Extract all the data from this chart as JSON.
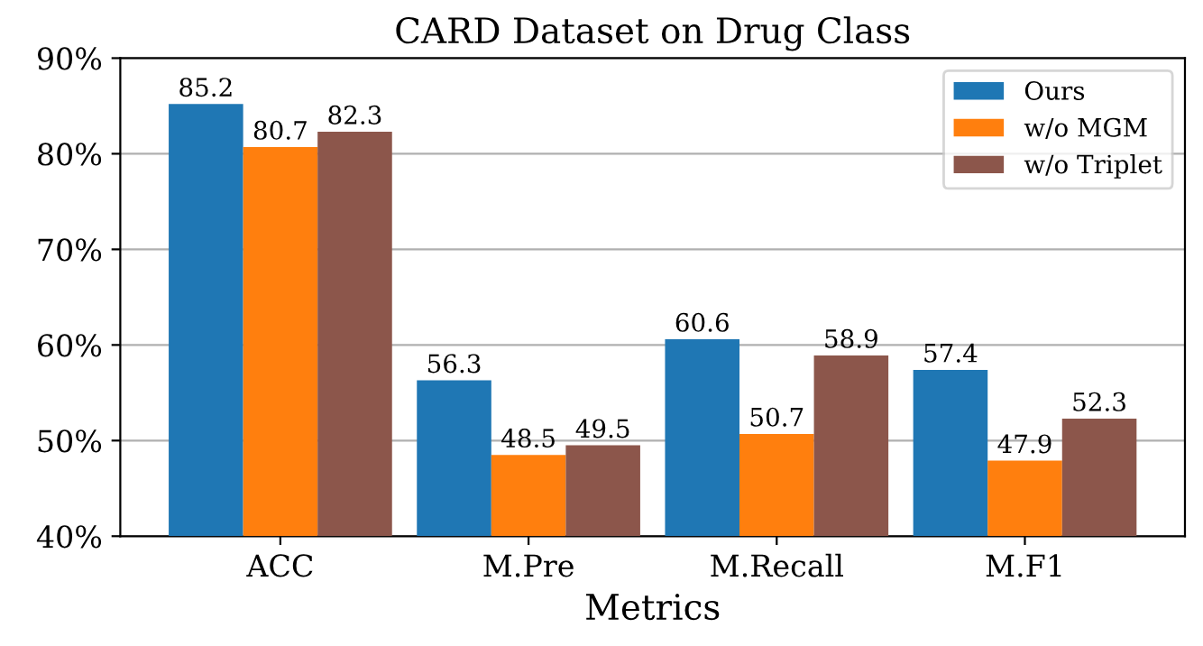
{
  "chart_data": {
    "type": "bar",
    "title": "CARD Dataset on Drug Class",
    "xlabel": "Metrics",
    "categories": [
      "ACC",
      "M.Pre",
      "M.Recall",
      "M.F1"
    ],
    "series": [
      {
        "name": "Ours",
        "color": "#1f77b4",
        "values": [
          85.2,
          56.3,
          60.6,
          57.4
        ]
      },
      {
        "name": "w/o MGM",
        "color": "#ff7f0e",
        "values": [
          80.7,
          48.5,
          50.7,
          47.9
        ]
      },
      {
        "name": "w/o Triplet",
        "color": "#8c564b",
        "values": [
          82.3,
          49.5,
          58.9,
          52.3
        ]
      }
    ],
    "ylim": [
      40,
      90
    ],
    "yticks": [
      {
        "value": 40,
        "label": "40%"
      },
      {
        "value": 50,
        "label": "50%"
      },
      {
        "value": 60,
        "label": "60%"
      },
      {
        "value": 70,
        "label": "70%"
      },
      {
        "value": 80,
        "label": "80%"
      },
      {
        "value": 90,
        "label": "90%"
      }
    ],
    "grid": "y",
    "legend": "top right",
    "data_labels": true
  }
}
